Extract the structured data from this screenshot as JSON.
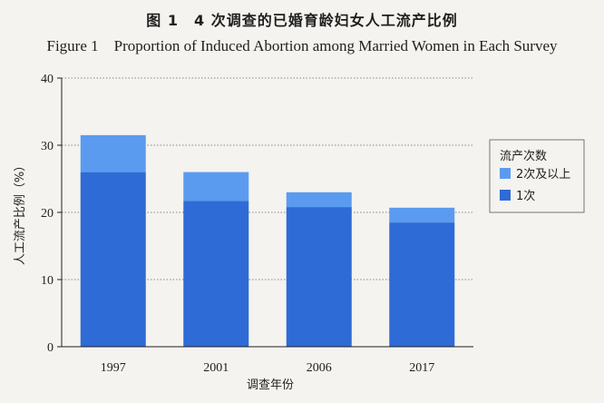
{
  "title_cn": "图 1　4 次调查的已婚育龄妇女人工流产比例",
  "title_en": "Figure 1　Proportion of Induced Abortion among Married Women in Each Survey",
  "chart_data": {
    "type": "bar",
    "stacked": true,
    "categories": [
      "1997",
      "2001",
      "2006",
      "2017"
    ],
    "series": [
      {
        "name": "1次",
        "values": [
          26.0,
          21.7,
          20.8,
          18.5
        ],
        "color": "#2e6bd6"
      },
      {
        "name": "2次及以上",
        "values": [
          5.5,
          4.3,
          2.2,
          2.2
        ],
        "color": "#5b9bef"
      }
    ],
    "xlabel": "调查年份",
    "ylabel": "人工流产比例（%）",
    "ylim": [
      0,
      40
    ],
    "yticks": [
      "0",
      "10",
      "20",
      "30",
      "40"
    ],
    "grid": true,
    "legend": {
      "title": "流产次数",
      "placement": "right",
      "order": [
        "2次及以上",
        "1次"
      ]
    }
  }
}
